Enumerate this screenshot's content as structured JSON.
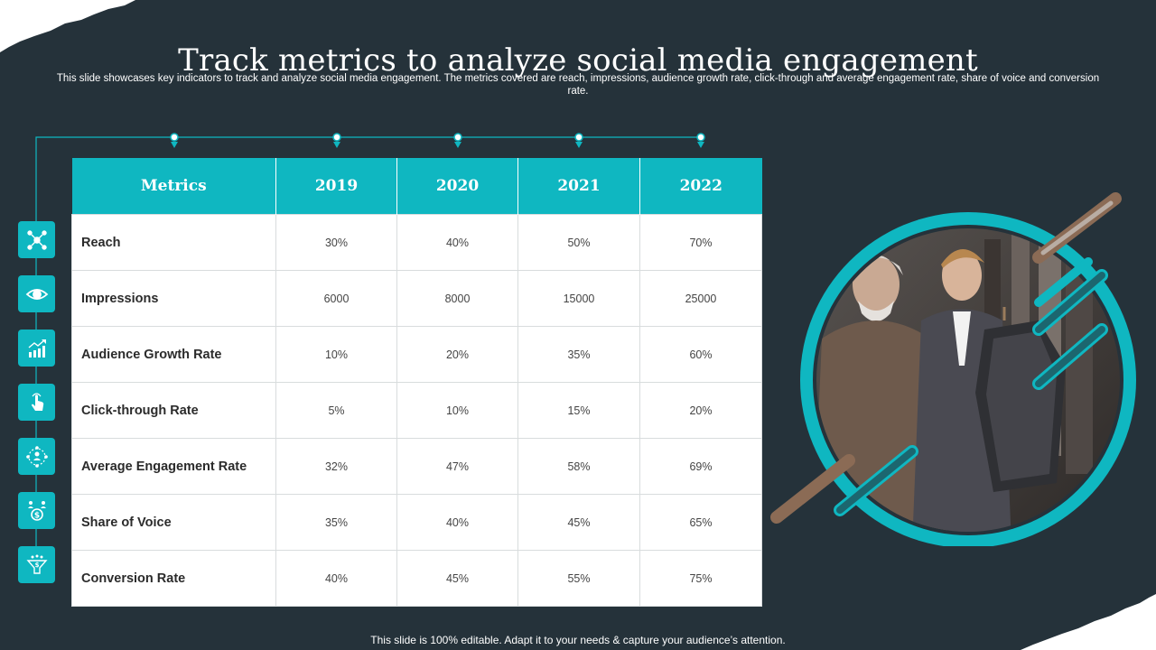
{
  "slide": {
    "title": "Track metrics to analyze social media engagement",
    "subtitle": "This slide showcases key indicators to track and analyze  social media engagement. The metrics covered are reach, impressions, audience growth rate, click-through and average engagement rate, share of voice  and conversion rate.",
    "footer": "This slide is 100% editable. Adapt it to your needs & capture your audience’s attention."
  },
  "table": {
    "headers": [
      "Metrics",
      "2019",
      "2020",
      "2021",
      "2022"
    ],
    "rows": [
      {
        "metric": "Reach",
        "icon": "network-icon",
        "values": [
          "30%",
          "40%",
          "50%",
          "70%"
        ]
      },
      {
        "metric": "Impressions",
        "icon": "eye-icon",
        "values": [
          "6000",
          "8000",
          "15000",
          "25000"
        ]
      },
      {
        "metric": "Audience Growth Rate",
        "icon": "growth-chart-icon",
        "values": [
          "10%",
          "20%",
          "35%",
          "60%"
        ]
      },
      {
        "metric": "Click-through Rate",
        "icon": "click-hand-icon",
        "values": [
          "5%",
          "10%",
          "15%",
          "20%"
        ]
      },
      {
        "metric": "Average Engagement Rate",
        "icon": "engagement-people-icon",
        "values": [
          "32%",
          "47%",
          "58%",
          "69%"
        ]
      },
      {
        "metric": "Share of Voice",
        "icon": "share-money-icon",
        "values": [
          "35%",
          "40%",
          "45%",
          "65%"
        ]
      },
      {
        "metric": "Conversion Rate",
        "icon": "conversion-funnel-icon",
        "values": [
          "40%",
          "45%",
          "55%",
          "75%"
        ]
      }
    ]
  },
  "colors": {
    "background": "#25323a",
    "accent": "#0fb7c1",
    "table_body": "#ffffff"
  },
  "image": {
    "icon": "photo-two-men-clothing-store"
  }
}
